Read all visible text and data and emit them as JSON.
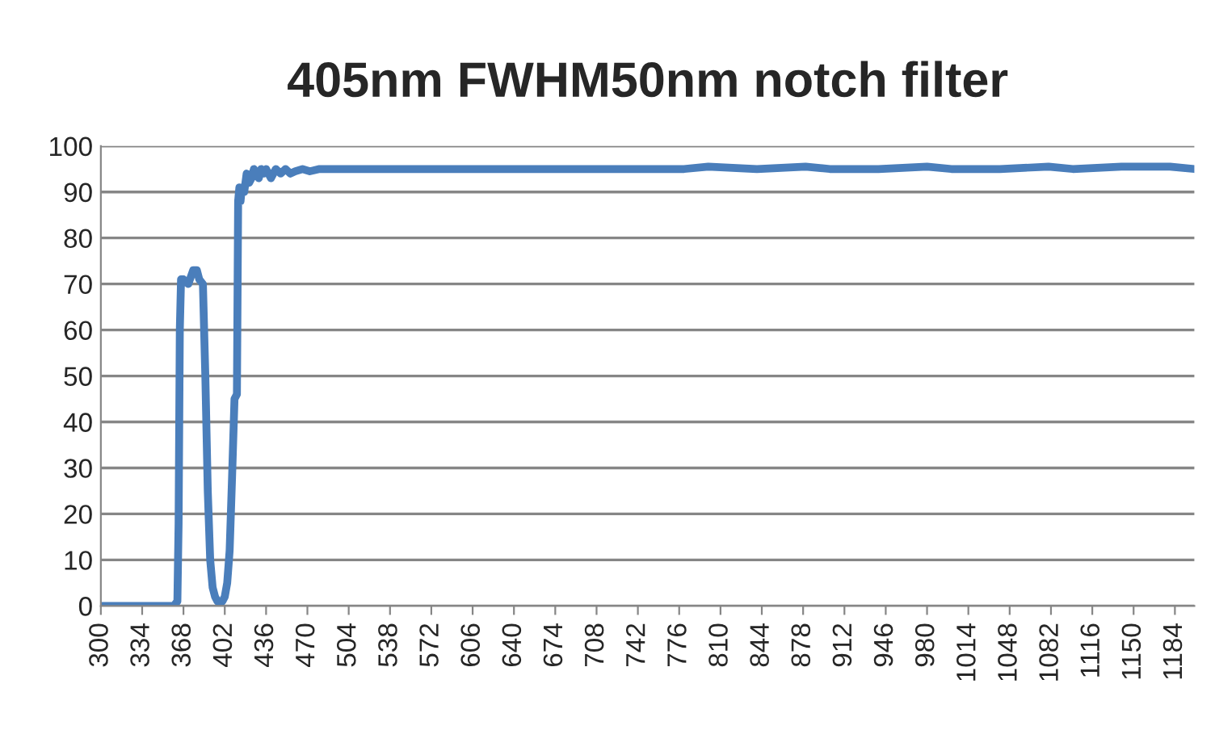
{
  "chart_data": {
    "type": "line",
    "title": "405nm FWHM50nm notch filter",
    "series": [
      {
        "color": "#4a7ebb",
        "x": [
          300,
          330,
          360,
          363,
          364,
          365,
          366,
          368,
          372,
          376,
          379,
          381,
          384,
          386,
          388,
          390,
          392,
          394,
          396,
          398,
          400,
          402,
          404,
          406,
          408,
          410,
          412,
          413,
          414,
          415,
          416,
          418,
          420,
          422,
          424,
          426,
          428,
          430,
          432,
          434,
          436,
          440,
          444,
          448,
          452,
          456,
          460,
          466,
          472,
          480,
          500,
          540,
          600,
          640,
          680,
          700,
          740,
          780,
          800,
          840,
          880,
          900,
          940,
          980,
          1000,
          1040,
          1080,
          1100,
          1140,
          1180,
          1200
        ],
        "values": [
          0,
          0,
          0,
          1,
          18,
          60,
          71,
          71,
          70,
          73,
          73,
          71,
          70,
          50,
          25,
          10,
          4,
          2,
          1,
          1,
          1,
          2,
          5,
          12,
          28,
          45,
          46,
          88,
          91,
          88,
          91,
          90,
          94,
          92,
          93,
          95,
          94,
          93,
          95,
          94,
          95,
          93,
          95,
          94,
          95,
          94,
          94.5,
          95,
          94.5,
          95,
          95,
          95,
          95,
          95,
          95,
          95,
          95,
          95,
          95.5,
          95,
          95.5,
          95,
          95,
          95.5,
          95,
          95,
          95.5,
          95,
          95.5,
          95.5,
          95
        ]
      }
    ],
    "xlim": [
      300,
      1200
    ],
    "xticks": [
      300,
      334,
      368,
      402,
      436,
      470,
      504,
      538,
      572,
      606,
      640,
      674,
      708,
      742,
      776,
      810,
      844,
      878,
      912,
      946,
      980,
      1014,
      1048,
      1082,
      1116,
      1150,
      1184
    ],
    "ylim": [
      0,
      100
    ],
    "yticks": [
      0,
      10,
      20,
      30,
      40,
      50,
      60,
      70,
      80,
      90,
      100
    ],
    "grid": "y",
    "marker": "none",
    "line_style": "solid",
    "legend": false
  }
}
